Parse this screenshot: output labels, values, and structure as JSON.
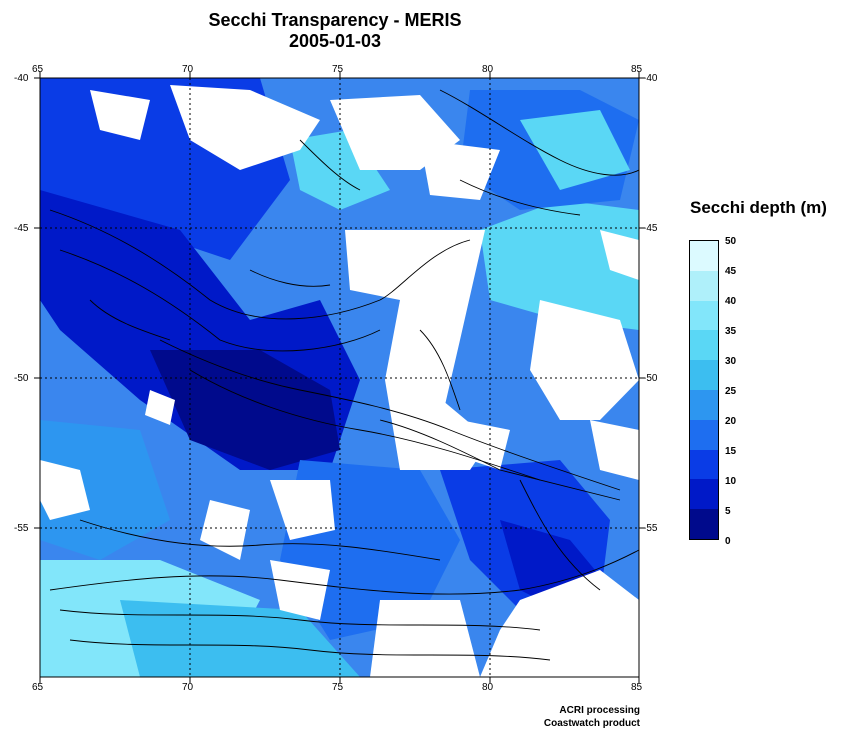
{
  "title": {
    "line1": "Secchi Transparency - MERIS",
    "line2": "2005-01-03"
  },
  "map": {
    "lon_ticks": [
      "65",
      "70",
      "75",
      "80",
      "85"
    ],
    "lat_ticks": [
      "-40",
      "-45",
      "-50",
      "-55"
    ],
    "lon_range": [
      65,
      85
    ],
    "lat_range": [
      -40,
      -60
    ],
    "grid": "dotted",
    "no_data_color": "#ffffff"
  },
  "colorbar": {
    "title": "Secchi depth (m)",
    "labels": [
      "50",
      "45",
      "40",
      "35",
      "30",
      "25",
      "20",
      "15",
      "10",
      "5",
      "0"
    ],
    "min": 0,
    "max": 50,
    "colors": [
      "#000a8c",
      "#0019c8",
      "#0a3ce6",
      "#1e6ef0",
      "#2d96f0",
      "#3cbef0",
      "#5ad7f5",
      "#82e6fa",
      "#aff0fa",
      "#dcfaff"
    ]
  },
  "credits": {
    "line1": "ACRI processing",
    "line2": "Coastwatch product"
  }
}
